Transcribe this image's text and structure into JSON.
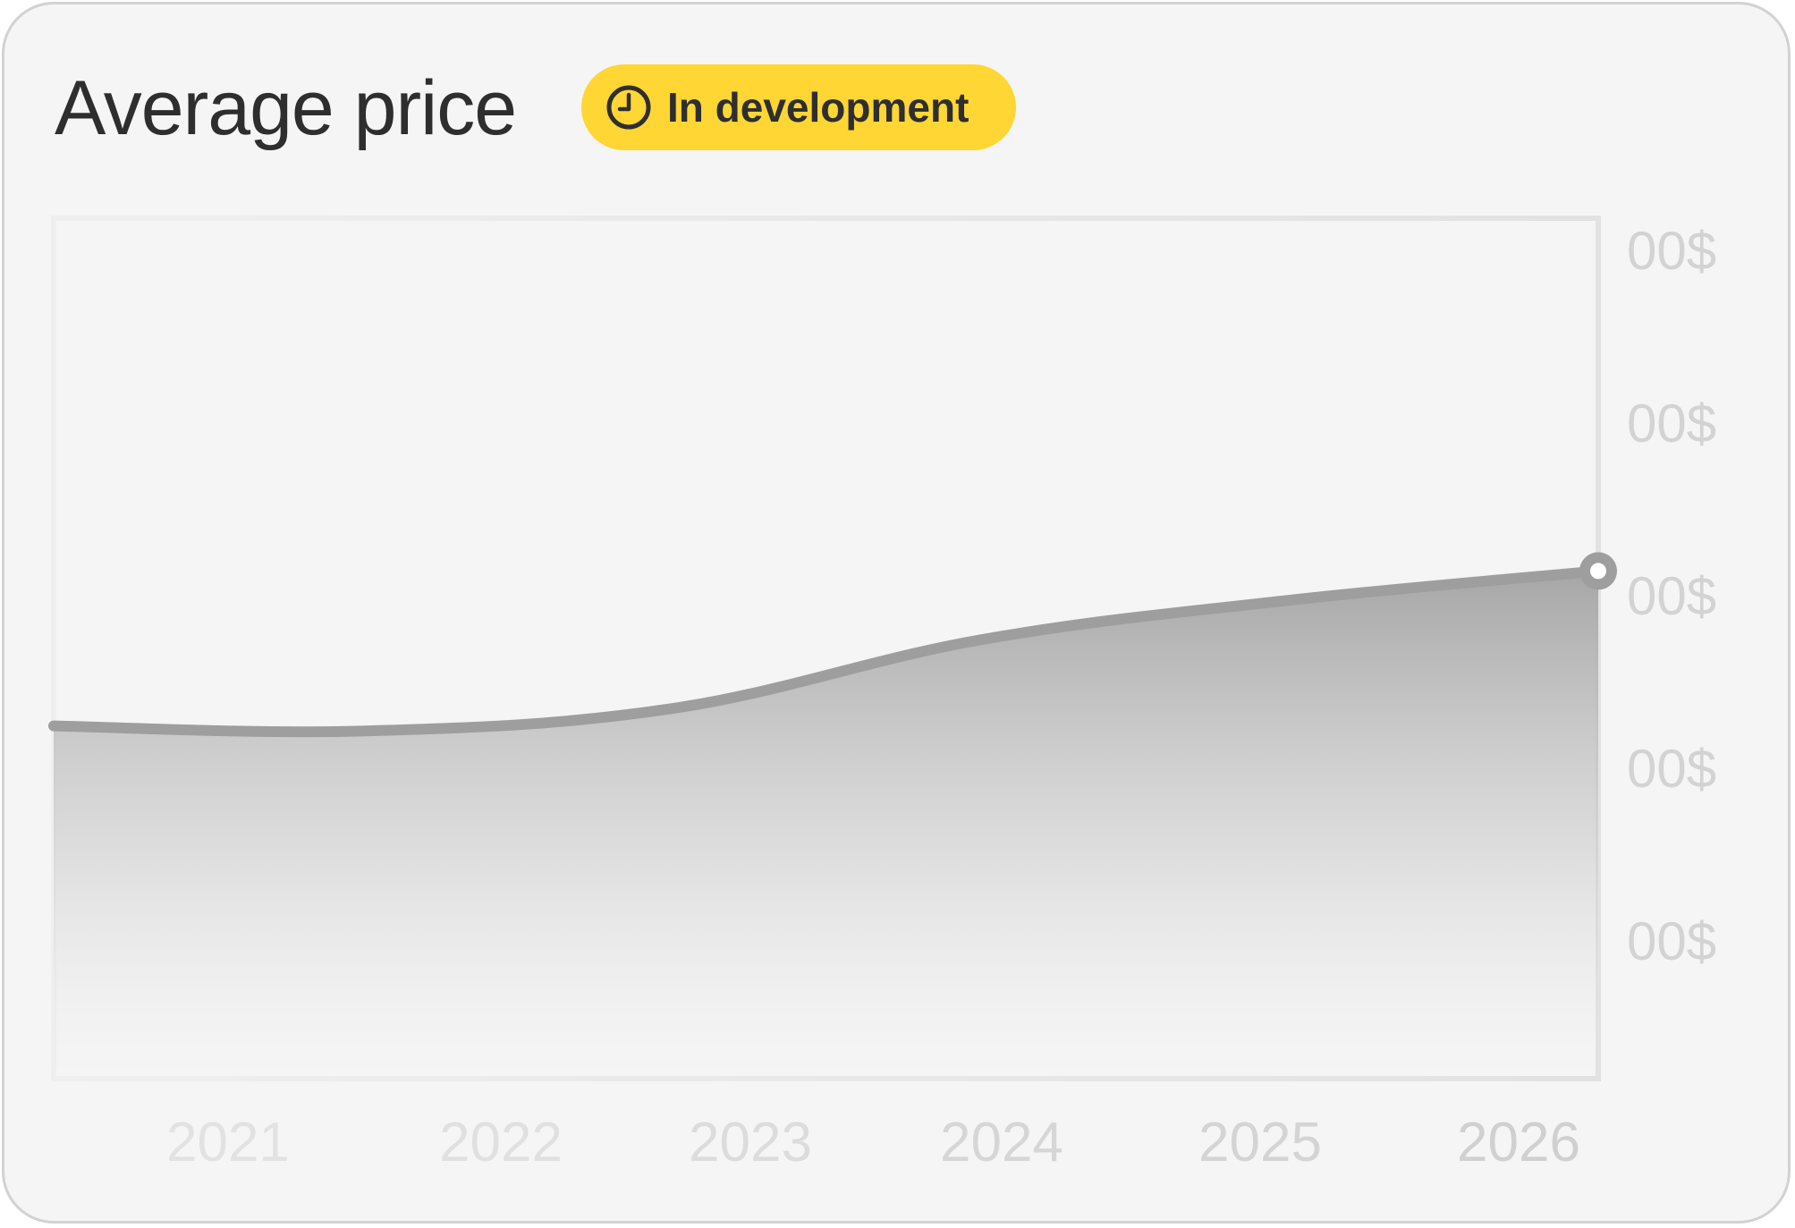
{
  "header": {
    "title": "Average price",
    "badge_label": "In development",
    "badge_icon": "clock-icon",
    "badge_color": "#ffd633"
  },
  "chart_data": {
    "type": "area",
    "x": [
      2021,
      2022,
      2023,
      2024,
      2025,
      2026
    ],
    "x_tick_labels": [
      "2021",
      "2022",
      "2023",
      "2024",
      "2025",
      "2026"
    ],
    "y_tick_labels": [
      "00$",
      "00$",
      "00$",
      "00$",
      "00$"
    ],
    "series": [
      {
        "x": [
          2021,
          2022,
          2023,
          2024,
          2025,
          2026
        ],
        "values": [
          2.05,
          2.02,
          2.15,
          2.55,
          2.78,
          2.95
        ],
        "color": "#9e9e9e"
      }
    ],
    "xlim": [
      2021,
      2026
    ],
    "ylim": [
      0,
      5
    ],
    "grid": true,
    "legend": "none",
    "line_color": "#9e9e9e",
    "grid_color": "#e8e8e8",
    "tick_color": "#d3d3d3"
  }
}
